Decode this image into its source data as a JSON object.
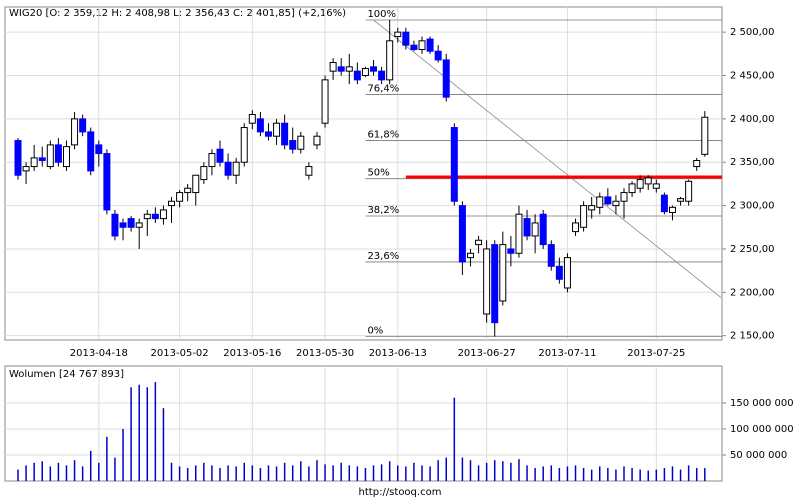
{
  "chart_data": [
    {
      "type": "candlestick",
      "title": "WIG20 [O: 2 359,12  H: 2 408,98  L: 2 356,43  C: 2 401,85] (+2,16%)",
      "categories": [
        null,
        null,
        null,
        null,
        null,
        null,
        null,
        null,
        null,
        null,
        "2013-04-18",
        null,
        null,
        null,
        null,
        null,
        null,
        null,
        null,
        null,
        "2013-05-02",
        null,
        null,
        null,
        null,
        null,
        null,
        null,
        null,
        "2013-05-16",
        null,
        null,
        null,
        null,
        null,
        null,
        null,
        null,
        "2013-05-30",
        null,
        null,
        null,
        null,
        null,
        null,
        null,
        null,
        "2013-06-13",
        null,
        null,
        null,
        null,
        null,
        null,
        null,
        null,
        null,
        null,
        "2013-06-27",
        null,
        null,
        null,
        null,
        null,
        null,
        null,
        null,
        null,
        "2013-07-11",
        null,
        null,
        null,
        null,
        null,
        null,
        null,
        null,
        null,
        null,
        "2013-07-25",
        null,
        null,
        null,
        null,
        null,
        null
      ],
      "ohlc": [
        [
          2375,
          2378,
          2330,
          2335
        ],
        [
          2340,
          2350,
          2325,
          2345
        ],
        [
          2345,
          2370,
          2340,
          2355
        ],
        [
          2355,
          2368,
          2345,
          2352
        ],
        [
          2345,
          2375,
          2342,
          2370
        ],
        [
          2370,
          2378,
          2345,
          2350
        ],
        [
          2345,
          2375,
          2340,
          2368
        ],
        [
          2370,
          2408,
          2365,
          2400
        ],
        [
          2400,
          2405,
          2380,
          2385
        ],
        [
          2385,
          2390,
          2335,
          2340
        ],
        [
          2370,
          2375,
          2345,
          2360
        ],
        [
          2360,
          2365,
          2290,
          2295
        ],
        [
          2290,
          2295,
          2260,
          2265
        ],
        [
          2280,
          2285,
          2260,
          2275
        ],
        [
          2285,
          2288,
          2270,
          2275
        ],
        [
          2275,
          2285,
          2250,
          2280
        ],
        [
          2285,
          2295,
          2265,
          2290
        ],
        [
          2290,
          2298,
          2280,
          2285
        ],
        [
          2285,
          2300,
          2278,
          2295
        ],
        [
          2300,
          2310,
          2280,
          2305
        ],
        [
          2305,
          2318,
          2298,
          2315
        ],
        [
          2315,
          2325,
          2305,
          2320
        ],
        [
          2315,
          2335,
          2300,
          2335
        ],
        [
          2330,
          2350,
          2325,
          2345
        ],
        [
          2345,
          2365,
          2335,
          2360
        ],
        [
          2365,
          2375,
          2345,
          2350
        ],
        [
          2350,
          2360,
          2330,
          2335
        ],
        [
          2335,
          2355,
          2325,
          2350
        ],
        [
          2350,
          2395,
          2345,
          2390
        ],
        [
          2395,
          2410,
          2388,
          2405
        ],
        [
          2400,
          2408,
          2380,
          2385
        ],
        [
          2385,
          2395,
          2375,
          2380
        ],
        [
          2380,
          2400,
          2370,
          2395
        ],
        [
          2395,
          2405,
          2365,
          2370
        ],
        [
          2375,
          2390,
          2360,
          2365
        ],
        [
          2365,
          2385,
          2360,
          2380
        ],
        [
          2335,
          2350,
          2330,
          2345
        ],
        [
          2370,
          2385,
          2365,
          2380
        ],
        [
          2395,
          2450,
          2390,
          2445
        ],
        [
          2455,
          2470,
          2445,
          2465
        ],
        [
          2460,
          2470,
          2450,
          2455
        ],
        [
          2455,
          2475,
          2440,
          2460
        ],
        [
          2455,
          2465,
          2440,
          2445
        ],
        [
          2450,
          2460,
          2448,
          2458
        ],
        [
          2460,
          2468,
          2450,
          2455
        ],
        [
          2455,
          2460,
          2440,
          2445
        ],
        [
          2445,
          2514,
          2440,
          2490
        ],
        [
          2495,
          2505,
          2488,
          2500
        ],
        [
          2500,
          2505,
          2480,
          2485
        ],
        [
          2485,
          2490,
          2478,
          2480
        ],
        [
          2480,
          2495,
          2475,
          2490
        ],
        [
          2492,
          2495,
          2475,
          2478
        ],
        [
          2478,
          2485,
          2465,
          2468
        ],
        [
          2468,
          2475,
          2420,
          2425
        ],
        [
          2390,
          2395,
          2300,
          2305
        ],
        [
          2300,
          2305,
          2220,
          2235
        ],
        [
          2240,
          2250,
          2230,
          2245
        ],
        [
          2255,
          2265,
          2245,
          2260
        ],
        [
          2175,
          2260,
          2165,
          2250
        ],
        [
          2255,
          2260,
          2149,
          2165
        ],
        [
          2190,
          2270,
          2185,
          2255
        ],
        [
          2250,
          2265,
          2230,
          2245
        ],
        [
          2245,
          2300,
          2240,
          2290
        ],
        [
          2285,
          2295,
          2260,
          2265
        ],
        [
          2265,
          2290,
          2245,
          2280
        ],
        [
          2290,
          2295,
          2250,
          2255
        ],
        [
          2255,
          2260,
          2225,
          2230
        ],
        [
          2230,
          2240,
          2210,
          2215
        ],
        [
          2205,
          2245,
          2200,
          2240
        ],
        [
          2270,
          2285,
          2265,
          2280
        ],
        [
          2275,
          2305,
          2270,
          2300
        ],
        [
          2295,
          2310,
          2285,
          2300
        ],
        [
          2298,
          2315,
          2290,
          2310
        ],
        [
          2310,
          2320,
          2300,
          2302
        ],
        [
          2300,
          2312,
          2290,
          2305
        ],
        [
          2305,
          2320,
          2285,
          2315
        ],
        [
          2315,
          2328,
          2310,
          2325
        ],
        [
          2320,
          2335,
          2315,
          2330
        ],
        [
          2325,
          2335,
          2318,
          2332
        ],
        [
          2320,
          2330,
          2315,
          2325
        ],
        [
          2312,
          2315,
          2290,
          2293
        ],
        [
          2292,
          2300,
          2283,
          2298
        ],
        [
          2305,
          2310,
          2300,
          2308
        ],
        [
          2305,
          2330,
          2300,
          2328
        ],
        [
          2345,
          2355,
          2340,
          2352
        ],
        [
          2359.12,
          2408.98,
          2356.43,
          2401.85
        ]
      ],
      "up_color": "#ffffff",
      "down_color": "#0000ff",
      "ylim": [
        2145,
        2529
      ],
      "yticks": [
        {
          "value": 2150,
          "label": "2 150,00"
        },
        {
          "value": 2200,
          "label": "2 200,00"
        },
        {
          "value": 2250,
          "label": "2 250,00"
        },
        {
          "value": 2300,
          "label": "2 300,00"
        },
        {
          "value": 2350,
          "label": "2 350,00"
        },
        {
          "value": 2400,
          "label": "2 400,00"
        },
        {
          "value": 2450,
          "label": "2 450,00"
        },
        {
          "value": 2500,
          "label": "2 500,00"
        }
      ],
      "fibonacci": [
        {
          "value": 2514,
          "label": "100%"
        },
        {
          "value": 2428,
          "label": "76,4%"
        },
        {
          "value": 2375,
          "label": "61,8%"
        },
        {
          "value": 2331,
          "label": "50%"
        },
        {
          "value": 2288,
          "label": "38,2%"
        },
        {
          "value": 2235,
          "label": "23,6%"
        },
        {
          "value": 2149,
          "label": "0%"
        }
      ],
      "fib_start": 43,
      "level": {
        "value": 2333,
        "start": 48,
        "color": "#ff0000"
      },
      "trendline": {
        "x": [
          44,
          87
        ],
        "y": [
          2514,
          2194
        ]
      },
      "grid": true
    },
    {
      "type": "bar",
      "title": "Wolumen [24 767 893]",
      "color": "#0000cc",
      "values": [
        22000000,
        30000000,
        35000000,
        38000000,
        28000000,
        35000000,
        30000000,
        40000000,
        28000000,
        58000000,
        35000000,
        85000000,
        45000000,
        100000000,
        180000000,
        185000000,
        180000000,
        190000000,
        140000000,
        35000000,
        28000000,
        25000000,
        30000000,
        35000000,
        30000000,
        25000000,
        30000000,
        28000000,
        35000000,
        30000000,
        25000000,
        30000000,
        28000000,
        35000000,
        30000000,
        38000000,
        28000000,
        40000000,
        32000000,
        30000000,
        35000000,
        30000000,
        28000000,
        25000000,
        30000000,
        32000000,
        38000000,
        30000000,
        28000000,
        35000000,
        30000000,
        28000000,
        40000000,
        45000000,
        160000000,
        45000000,
        40000000,
        30000000,
        35000000,
        40000000,
        38000000,
        35000000,
        42000000,
        30000000,
        25000000,
        28000000,
        30000000,
        25000000,
        28000000,
        30000000,
        25000000,
        22000000,
        28000000,
        25000000,
        22000000,
        28000000,
        25000000,
        22000000,
        20000000,
        22000000,
        25000000,
        28000000,
        22000000,
        30000000,
        25000000,
        24767893
      ],
      "ylim": [
        0,
        221000000
      ],
      "yticks": [
        {
          "value": 50000000,
          "label": "50 000 000"
        },
        {
          "value": 100000000,
          "label": "100 000 000"
        },
        {
          "value": 150000000,
          "label": "150 000 000"
        }
      ],
      "grid": true
    }
  ],
  "footer": "http://stooq.com"
}
